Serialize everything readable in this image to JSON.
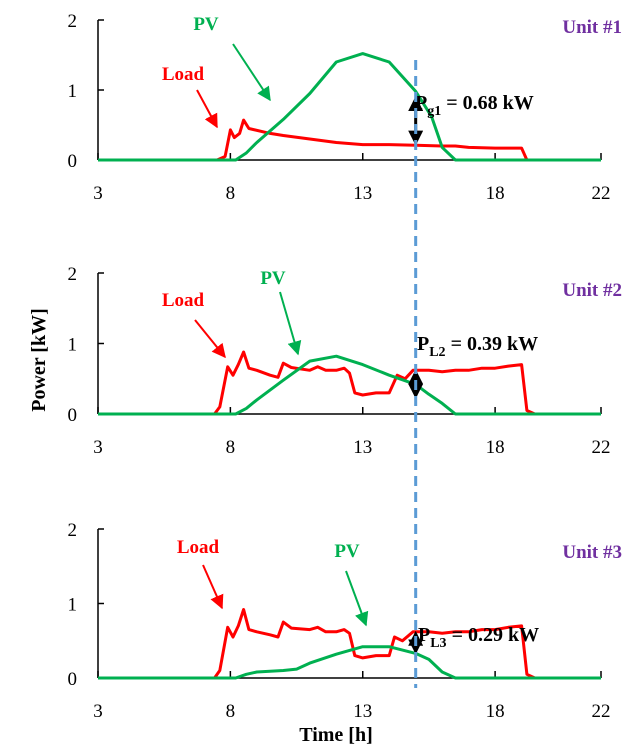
{
  "figure": {
    "ylabel": "Power  [kW]",
    "xlabel": "Time [h]"
  },
  "colors": {
    "load": "#ff0000",
    "pv": "#00b050",
    "unit": "#7030a0",
    "dashed": "#5b9bd5",
    "axis": "#000000"
  },
  "chart_data": [
    {
      "type": "line",
      "unit_label": "Unit #1",
      "xlim": [
        3,
        22
      ],
      "ylim": [
        0,
        2
      ],
      "x_ticks": [
        "3",
        "8",
        "13",
        "18",
        "22"
      ],
      "y_ticks": [
        "0",
        "1",
        "2"
      ],
      "series": [
        {
          "name": "Load",
          "points": [
            [
              3,
              0
            ],
            [
              7.5,
              0
            ],
            [
              7.8,
              0.05
            ],
            [
              8.0,
              0.43
            ],
            [
              8.15,
              0.32
            ],
            [
              8.35,
              0.38
            ],
            [
              8.5,
              0.57
            ],
            [
              8.7,
              0.45
            ],
            [
              9.5,
              0.38
            ],
            [
              10,
              0.35
            ],
            [
              11,
              0.3
            ],
            [
              12,
              0.25
            ],
            [
              13,
              0.22
            ],
            [
              14,
              0.22
            ],
            [
              15,
              0.21
            ],
            [
              16,
              0.2
            ],
            [
              16.5,
              0.2
            ],
            [
              17,
              0.18
            ],
            [
              18,
              0.17
            ],
            [
              19,
              0.17
            ],
            [
              19.2,
              0
            ],
            [
              22,
              0
            ]
          ]
        },
        {
          "name": "PV",
          "points": [
            [
              3,
              0
            ],
            [
              8.2,
              0
            ],
            [
              8.6,
              0.1
            ],
            [
              9,
              0.25
            ],
            [
              10,
              0.58
            ],
            [
              11,
              0.95
            ],
            [
              12,
              1.4
            ],
            [
              13,
              1.52
            ],
            [
              14,
              1.4
            ],
            [
              15,
              0.98
            ],
            [
              15.6,
              0.62
            ],
            [
              16,
              0.18
            ],
            [
              16.5,
              0
            ],
            [
              22,
              0
            ]
          ]
        }
      ],
      "series_labels": [
        "Load",
        "PV"
      ],
      "annotation": {
        "main": "P",
        "sub": "g1",
        "rest": " = 0.68 kW",
        "x": 15,
        "y_top": 0.9,
        "y_bottom": 0.22
      }
    },
    {
      "type": "line",
      "unit_label": "Unit #2",
      "xlim": [
        3,
        22
      ],
      "ylim": [
        0,
        2
      ],
      "x_ticks": [
        "3",
        "8",
        "13",
        "18",
        "22"
      ],
      "y_ticks": [
        "0",
        "1",
        "2"
      ],
      "series": [
        {
          "name": "Load",
          "points": [
            [
              3,
              0
            ],
            [
              7.4,
              0
            ],
            [
              7.6,
              0.1
            ],
            [
              7.9,
              0.67
            ],
            [
              8.1,
              0.55
            ],
            [
              8.3,
              0.7
            ],
            [
              8.5,
              0.88
            ],
            [
              8.7,
              0.65
            ],
            [
              9,
              0.62
            ],
            [
              9.5,
              0.55
            ],
            [
              9.8,
              0.52
            ],
            [
              10,
              0.72
            ],
            [
              10.3,
              0.66
            ],
            [
              11,
              0.62
            ],
            [
              11.3,
              0.67
            ],
            [
              11.6,
              0.62
            ],
            [
              12,
              0.62
            ],
            [
              12.3,
              0.65
            ],
            [
              12.5,
              0.58
            ],
            [
              12.7,
              0.3
            ],
            [
              13,
              0.27
            ],
            [
              13.5,
              0.3
            ],
            [
              14,
              0.3
            ],
            [
              14.3,
              0.55
            ],
            [
              14.6,
              0.5
            ],
            [
              14.9,
              0.62
            ],
            [
              15.5,
              0.62
            ],
            [
              16,
              0.6
            ],
            [
              16.5,
              0.62
            ],
            [
              17,
              0.62
            ],
            [
              17.5,
              0.65
            ],
            [
              18,
              0.65
            ],
            [
              18.5,
              0.68
            ],
            [
              19,
              0.7
            ],
            [
              19.2,
              0.05
            ],
            [
              19.5,
              0
            ],
            [
              22,
              0
            ]
          ]
        },
        {
          "name": "PV",
          "points": [
            [
              3,
              0
            ],
            [
              8.2,
              0
            ],
            [
              8.6,
              0.08
            ],
            [
              9,
              0.2
            ],
            [
              10,
              0.48
            ],
            [
              11,
              0.75
            ],
            [
              12,
              0.82
            ],
            [
              13,
              0.7
            ],
            [
              14,
              0.55
            ],
            [
              15,
              0.42
            ],
            [
              15.5,
              0.28
            ],
            [
              16,
              0.15
            ],
            [
              16.5,
              0
            ],
            [
              22,
              0
            ]
          ]
        }
      ],
      "series_labels": [
        "Load",
        "PV"
      ],
      "annotation": {
        "main": "P",
        "sub": "L2",
        "rest": " = 0.39 kW",
        "x": 15,
        "y_top": 0.62,
        "y_bottom": 0.23
      }
    },
    {
      "type": "line",
      "unit_label": "Unit #3",
      "xlim": [
        3,
        22
      ],
      "ylim": [
        0,
        2
      ],
      "x_ticks": [
        "3",
        "8",
        "13",
        "18",
        "22"
      ],
      "y_ticks": [
        "0",
        "1",
        "2"
      ],
      "series": [
        {
          "name": "Load",
          "points": [
            [
              3,
              0
            ],
            [
              7.4,
              0
            ],
            [
              7.6,
              0.1
            ],
            [
              7.9,
              0.68
            ],
            [
              8.1,
              0.55
            ],
            [
              8.3,
              0.7
            ],
            [
              8.5,
              0.92
            ],
            [
              8.7,
              0.65
            ],
            [
              9,
              0.62
            ],
            [
              9.5,
              0.58
            ],
            [
              9.8,
              0.55
            ],
            [
              10,
              0.75
            ],
            [
              10.3,
              0.67
            ],
            [
              11,
              0.65
            ],
            [
              11.3,
              0.68
            ],
            [
              11.6,
              0.62
            ],
            [
              12,
              0.62
            ],
            [
              12.3,
              0.65
            ],
            [
              12.5,
              0.6
            ],
            [
              12.7,
              0.3
            ],
            [
              13,
              0.27
            ],
            [
              13.5,
              0.3
            ],
            [
              14,
              0.3
            ],
            [
              14.2,
              0.55
            ],
            [
              14.5,
              0.5
            ],
            [
              14.9,
              0.62
            ],
            [
              15.5,
              0.62
            ],
            [
              16,
              0.6
            ],
            [
              16.5,
              0.62
            ],
            [
              17,
              0.62
            ],
            [
              17.5,
              0.65
            ],
            [
              18,
              0.65
            ],
            [
              18.5,
              0.68
            ],
            [
              19,
              0.7
            ],
            [
              19.2,
              0.05
            ],
            [
              19.5,
              0
            ],
            [
              22,
              0
            ]
          ]
        },
        {
          "name": "PV",
          "points": [
            [
              3,
              0
            ],
            [
              8.2,
              0
            ],
            [
              8.6,
              0.05
            ],
            [
              9,
              0.08
            ],
            [
              10,
              0.1
            ],
            [
              10.5,
              0.12
            ],
            [
              11,
              0.2
            ],
            [
              12,
              0.32
            ],
            [
              13,
              0.42
            ],
            [
              14,
              0.42
            ],
            [
              15,
              0.33
            ],
            [
              15.5,
              0.25
            ],
            [
              16,
              0.08
            ],
            [
              16.5,
              0
            ],
            [
              22,
              0
            ]
          ]
        }
      ],
      "series_labels": [
        "Load",
        "PV"
      ],
      "annotation": {
        "main": "P",
        "sub": "L3",
        "rest": " = 0.29 kW",
        "x": 15,
        "y_top": 0.62,
        "y_bottom": 0.33
      }
    }
  ]
}
